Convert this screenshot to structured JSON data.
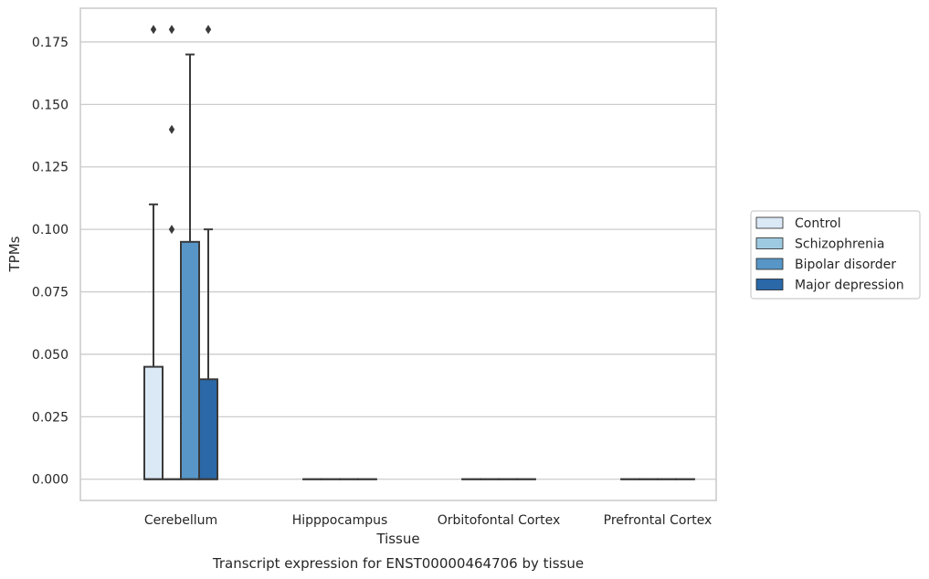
{
  "chart_data": {
    "type": "box",
    "title": "",
    "xlabel": "Tissue",
    "ylabel": "TPMs",
    "caption": "Transcript expression for ENST00000464706 by tissue",
    "categories": [
      "Cerebellum",
      "Hipppocampus",
      "Orbitofontal Cortex",
      "Prefrontal Cortex"
    ],
    "ylim": [
      -0.0085,
      0.1885
    ],
    "yticks": [
      0.0,
      0.025,
      0.05,
      0.075,
      0.1,
      0.125,
      0.15,
      0.175
    ],
    "ytick_labels": [
      "0.000",
      "0.025",
      "0.050",
      "0.075",
      "0.100",
      "0.125",
      "0.150",
      "0.175"
    ],
    "grid": "y",
    "legend_position": "right",
    "series": [
      {
        "name": "Control",
        "color": "#dbe9f6",
        "boxes": [
          {
            "q1": 0.0,
            "median": 0.0,
            "q3": 0.045,
            "whisker_low": 0.0,
            "whisker_high": 0.11,
            "outliers": [
              0.18
            ]
          },
          {
            "q1": 0.0,
            "median": 0.0,
            "q3": 0.0,
            "whisker_low": 0.0,
            "whisker_high": 0.0,
            "outliers": []
          },
          {
            "q1": 0.0,
            "median": 0.0,
            "q3": 0.0,
            "whisker_low": 0.0,
            "whisker_high": 0.0,
            "outliers": []
          },
          {
            "q1": 0.0,
            "median": 0.0,
            "q3": 0.0,
            "whisker_low": 0.0,
            "whisker_high": 0.0,
            "outliers": []
          }
        ]
      },
      {
        "name": "Schizophrenia",
        "color": "#9ecae1",
        "boxes": [
          {
            "q1": 0.0,
            "median": 0.0,
            "q3": 0.0,
            "whisker_low": 0.0,
            "whisker_high": 0.0,
            "outliers": [
              0.1,
              0.14,
              0.18
            ]
          },
          {
            "q1": 0.0,
            "median": 0.0,
            "q3": 0.0,
            "whisker_low": 0.0,
            "whisker_high": 0.0,
            "outliers": []
          },
          {
            "q1": 0.0,
            "median": 0.0,
            "q3": 0.0,
            "whisker_low": 0.0,
            "whisker_high": 0.0,
            "outliers": []
          },
          {
            "q1": 0.0,
            "median": 0.0,
            "q3": 0.0,
            "whisker_low": 0.0,
            "whisker_high": 0.0,
            "outliers": []
          }
        ]
      },
      {
        "name": "Bipolar disorder",
        "color": "#5796c6",
        "boxes": [
          {
            "q1": 0.0,
            "median": 0.0,
            "q3": 0.095,
            "whisker_low": 0.0,
            "whisker_high": 0.17,
            "outliers": []
          },
          {
            "q1": 0.0,
            "median": 0.0,
            "q3": 0.0,
            "whisker_low": 0.0,
            "whisker_high": 0.0,
            "outliers": []
          },
          {
            "q1": 0.0,
            "median": 0.0,
            "q3": 0.0,
            "whisker_low": 0.0,
            "whisker_high": 0.0,
            "outliers": []
          },
          {
            "q1": 0.0,
            "median": 0.0,
            "q3": 0.0,
            "whisker_low": 0.0,
            "whisker_high": 0.0,
            "outliers": []
          }
        ]
      },
      {
        "name": "Major depression",
        "color": "#2a68a8",
        "boxes": [
          {
            "q1": 0.0,
            "median": 0.0,
            "q3": 0.04,
            "whisker_low": 0.0,
            "whisker_high": 0.1,
            "outliers": [
              0.18
            ]
          },
          {
            "q1": 0.0,
            "median": 0.0,
            "q3": 0.0,
            "whisker_low": 0.0,
            "whisker_high": 0.0,
            "outliers": []
          },
          {
            "q1": 0.0,
            "median": 0.0,
            "q3": 0.0,
            "whisker_low": 0.0,
            "whisker_high": 0.0,
            "outliers": []
          },
          {
            "q1": 0.0,
            "median": 0.0,
            "q3": 0.0,
            "whisker_low": 0.0,
            "whisker_high": 0.0,
            "outliers": []
          }
        ]
      }
    ],
    "colors": {
      "grid": "#cccccc",
      "frame": "#cccccc",
      "line": "#3a3a3a"
    }
  }
}
